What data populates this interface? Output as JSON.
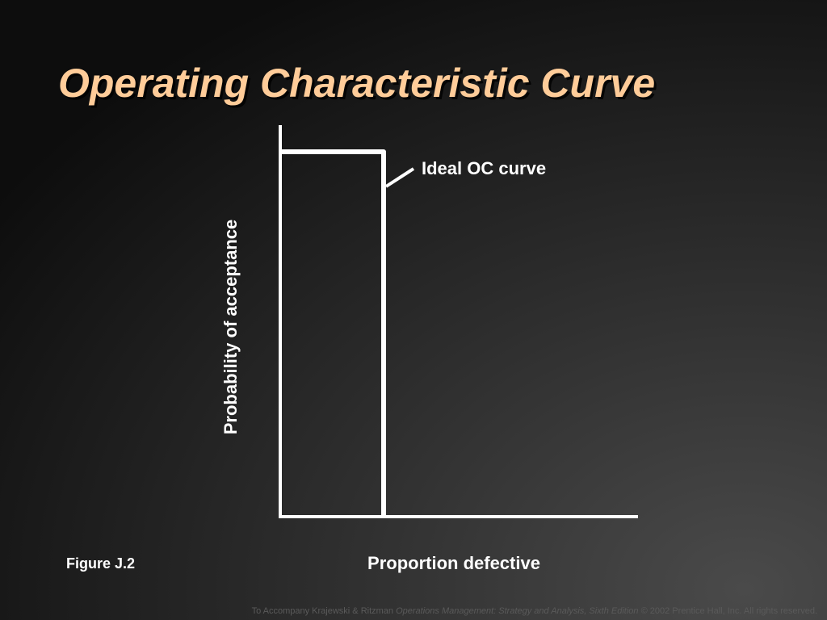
{
  "title": "Operating Characteristic Curve",
  "annotation": "Ideal OC curve",
  "y_axis_label": "Probability of acceptance",
  "x_axis_label": "Proportion defective",
  "figure_label": "Figure J.2",
  "footer": {
    "prefix": "To Accompany Krajewski & Ritzman ",
    "book": "Operations Management: Strategy and Analysis, Sixth Edition",
    "suffix": " © 2002 Prentice Hall, Inc. All rights reserved."
  }
}
